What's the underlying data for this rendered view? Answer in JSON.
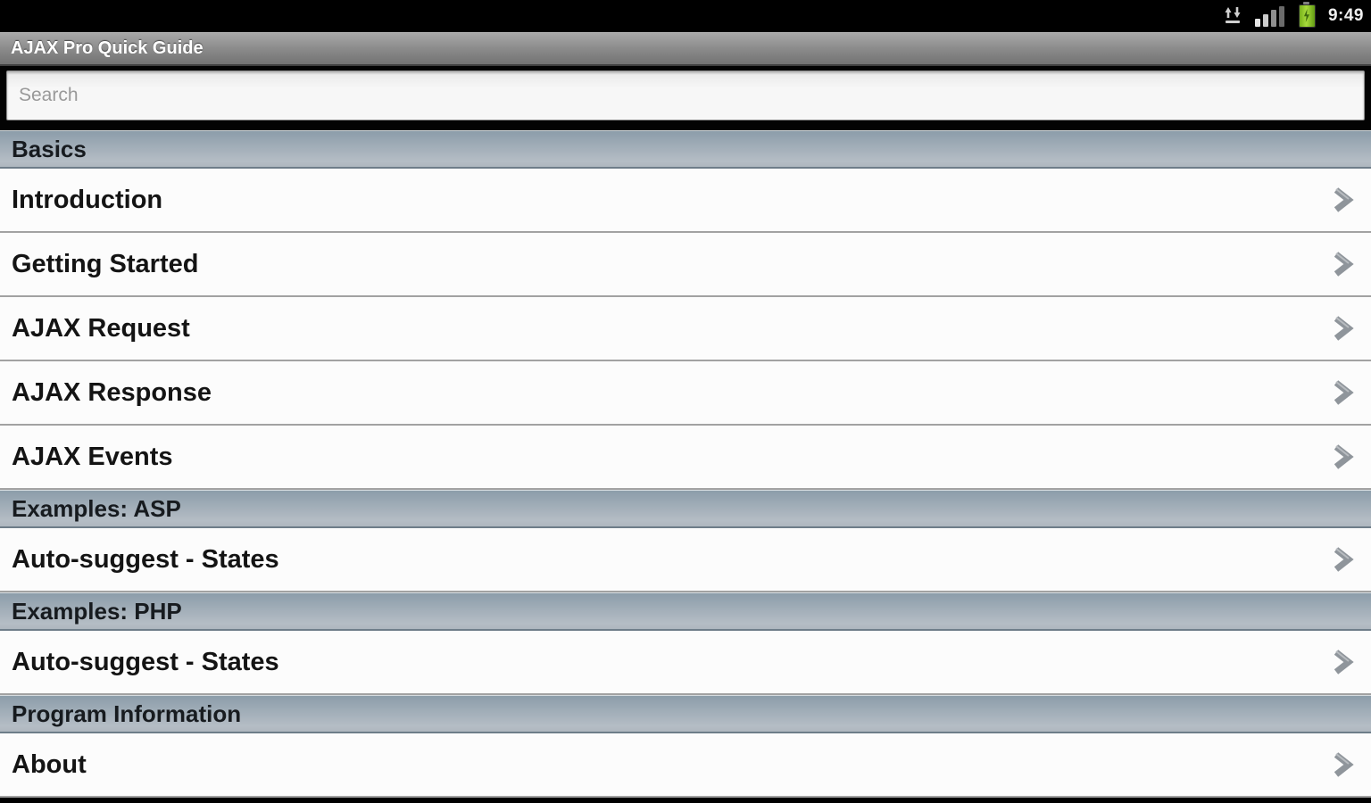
{
  "status_bar": {
    "time": "9:49",
    "icons": [
      "data-connection-icon",
      "signal-strength-icon",
      "battery-icon"
    ]
  },
  "title_bar": {
    "title": "AJAX Pro Quick Guide"
  },
  "search": {
    "placeholder": "Search"
  },
  "sections": [
    {
      "header": "Basics",
      "items": [
        "Introduction",
        "Getting Started",
        "AJAX Request",
        "AJAX Response",
        "AJAX Events"
      ]
    },
    {
      "header": "Examples: ASP",
      "items": [
        "Auto-suggest - States"
      ]
    },
    {
      "header": "Examples: PHP",
      "items": [
        "Auto-suggest - States"
      ]
    },
    {
      "header": "Program Information",
      "items": [
        "About"
      ]
    }
  ],
  "colors": {
    "status_bar_bg": "#000000",
    "title_bar_gray": "#8b8b8b",
    "section_header_blue_gray": "#9dabb6",
    "row_bg": "#fcfcfc",
    "battery_green": "#8fc62c",
    "chevron_gray": "#8f959b"
  }
}
